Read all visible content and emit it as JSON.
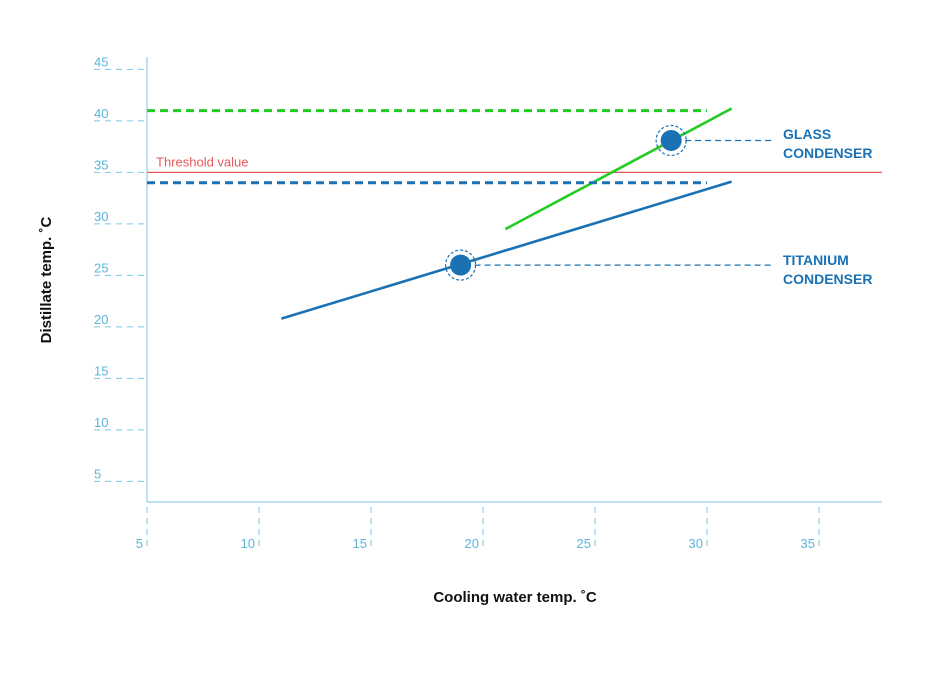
{
  "chart_data": {
    "type": "line",
    "xlabel": "Cooling water temp. ˚C",
    "ylabel": "Distillate temp. ˚C",
    "xlim": [
      5,
      38
    ],
    "ylim": [
      3,
      48
    ],
    "x_ticks": [
      "5",
      "10",
      "15",
      "20",
      "25",
      "30",
      "35"
    ],
    "y_ticks": [
      "5",
      "10",
      "15",
      "20",
      "25",
      "30",
      "35",
      "40",
      "45"
    ],
    "grid": false,
    "threshold": {
      "label": "Threshold value",
      "value": 35,
      "color": "#e8595a"
    },
    "series": [
      {
        "name": "GLASS CONDENSER",
        "label_lines": [
          "GLASS",
          "CONDENSER"
        ],
        "color": "#22cc22",
        "x": [
          21,
          31.1
        ],
        "y": [
          29.5,
          41.2
        ],
        "marker": {
          "x": 28.4,
          "y": 38.1
        },
        "dashed_limit": 41
      },
      {
        "name": "TITANIUM CONDENSER",
        "label_lines": [
          "TITANIUM",
          "CONDENSER"
        ],
        "color": "#1a72b4",
        "x": [
          11,
          31.1
        ],
        "y": [
          20.8,
          34.1
        ],
        "marker": {
          "x": 19,
          "y": 26
        },
        "dashed_limit": 34
      }
    ]
  }
}
